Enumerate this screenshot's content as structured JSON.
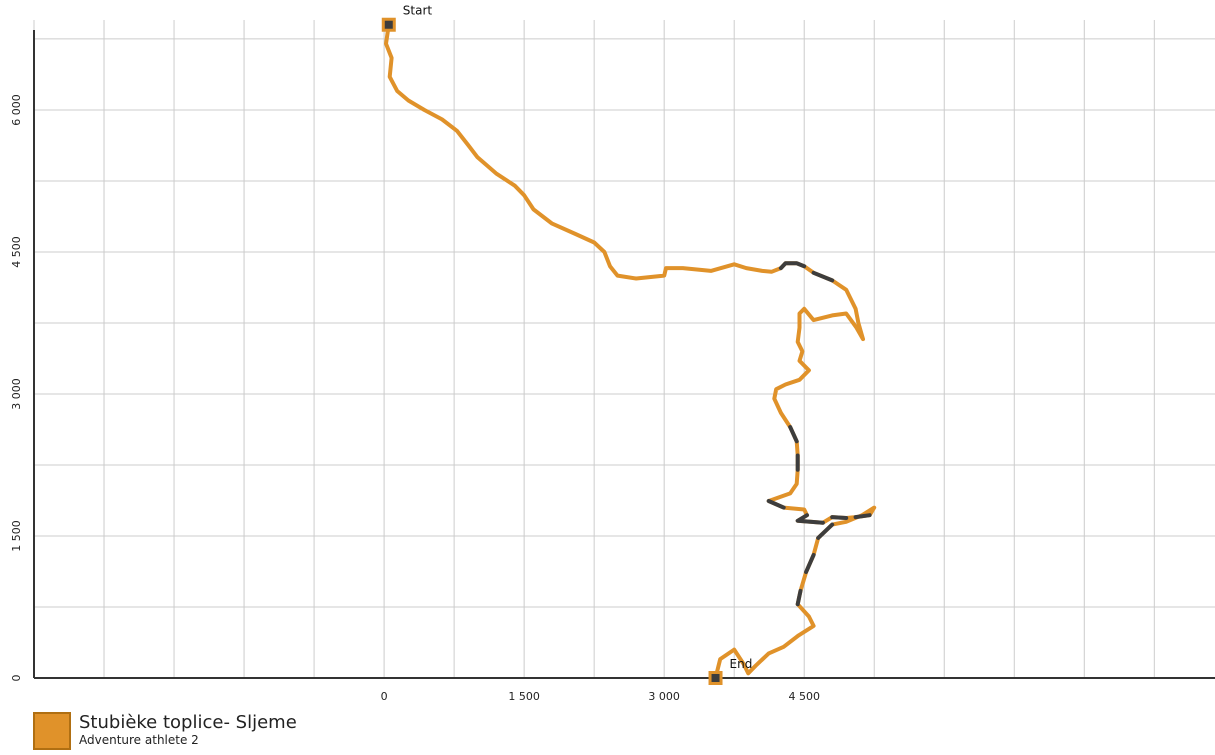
{
  "chart_data": {
    "type": "line",
    "grid": true,
    "xlim": [
      -3750,
      8900
    ],
    "ylim": [
      0,
      6950
    ],
    "x_ticks": [
      0,
      1500,
      3000,
      4500
    ],
    "x_tick_labels": [
      "0",
      "1 500",
      "3 000",
      "4 500"
    ],
    "y_ticks": [
      0,
      1500,
      3000,
      4500,
      6000
    ],
    "y_tick_labels": [
      "0",
      "1 500",
      "3 000",
      "4 500",
      "6 000"
    ],
    "colors": {
      "track": "#e0922a",
      "dark_segment": "#3d3d3d",
      "grid": "#cccccc",
      "axis": "#333333"
    },
    "markers": [
      {
        "label": "Start",
        "x": 50,
        "y": 6900
      },
      {
        "label": "End",
        "x": 3550,
        "y": 0
      }
    ],
    "series": [
      {
        "name": "Stubièke toplice- Sljeme",
        "points": [
          [
            50,
            6900
          ],
          [
            20,
            6700
          ],
          [
            80,
            6550
          ],
          [
            60,
            6350
          ],
          [
            140,
            6200
          ],
          [
            260,
            6100
          ],
          [
            430,
            6000
          ],
          [
            620,
            5900
          ],
          [
            780,
            5780
          ],
          [
            900,
            5630
          ],
          [
            1000,
            5500
          ],
          [
            1200,
            5330
          ],
          [
            1400,
            5200
          ],
          [
            1500,
            5100
          ],
          [
            1600,
            4950
          ],
          [
            1800,
            4800
          ],
          [
            2050,
            4690
          ],
          [
            2250,
            4600
          ],
          [
            2360,
            4500
          ],
          [
            2420,
            4350
          ],
          [
            2500,
            4250
          ],
          [
            2700,
            4220
          ],
          [
            3000,
            4250
          ],
          [
            3020,
            4330
          ],
          [
            3200,
            4330
          ],
          [
            3500,
            4300
          ],
          [
            3750,
            4370
          ],
          [
            3880,
            4330
          ],
          [
            4050,
            4300
          ],
          [
            4150,
            4290
          ],
          [
            4250,
            4330
          ],
          [
            4300,
            4380
          ],
          [
            4420,
            4380
          ],
          [
            4500,
            4350
          ],
          [
            4600,
            4280
          ],
          [
            4800,
            4200
          ],
          [
            4950,
            4100
          ],
          [
            5050,
            3900
          ],
          [
            5080,
            3750
          ],
          [
            5130,
            3580
          ],
          [
            5060,
            3700
          ],
          [
            4950,
            3850
          ],
          [
            4800,
            3830
          ],
          [
            4600,
            3780
          ],
          [
            4500,
            3900
          ],
          [
            4450,
            3850
          ],
          [
            4450,
            3700
          ],
          [
            4430,
            3550
          ],
          [
            4480,
            3450
          ],
          [
            4450,
            3350
          ],
          [
            4550,
            3250
          ],
          [
            4450,
            3150
          ],
          [
            4300,
            3100
          ],
          [
            4200,
            3050
          ],
          [
            4180,
            2950
          ],
          [
            4250,
            2800
          ],
          [
            4350,
            2650
          ],
          [
            4420,
            2500
          ],
          [
            4430,
            2350
          ],
          [
            4430,
            2200
          ],
          [
            4420,
            2050
          ],
          [
            4350,
            1950
          ],
          [
            4120,
            1870
          ],
          [
            4280,
            1800
          ],
          [
            4500,
            1780
          ],
          [
            4530,
            1720
          ],
          [
            4430,
            1660
          ],
          [
            4700,
            1640
          ],
          [
            4800,
            1700
          ],
          [
            4950,
            1690
          ],
          [
            5050,
            1700
          ],
          [
            5200,
            1720
          ],
          [
            5250,
            1800
          ],
          [
            5120,
            1720
          ],
          [
            4950,
            1650
          ],
          [
            4800,
            1620
          ],
          [
            4650,
            1480
          ],
          [
            4600,
            1300
          ],
          [
            4520,
            1120
          ],
          [
            4460,
            920
          ],
          [
            4430,
            780
          ],
          [
            4550,
            650
          ],
          [
            4600,
            550
          ],
          [
            4440,
            450
          ],
          [
            4280,
            330
          ],
          [
            4120,
            260
          ],
          [
            3980,
            130
          ],
          [
            3900,
            50
          ],
          [
            3850,
            150
          ],
          [
            3750,
            300
          ],
          [
            3600,
            200
          ],
          [
            3550,
            0
          ]
        ]
      }
    ],
    "dark_segments": [
      [
        [
          4250,
          4330
        ],
        [
          4300,
          4380
        ],
        [
          4420,
          4380
        ],
        [
          4500,
          4350
        ]
      ],
      [
        [
          4600,
          4280
        ],
        [
          4800,
          4200
        ]
      ],
      [
        [
          4350,
          2650
        ],
        [
          4420,
          2500
        ]
      ],
      [
        [
          4430,
          2350
        ],
        [
          4430,
          2200
        ]
      ],
      [
        [
          4120,
          1870
        ],
        [
          4280,
          1800
        ]
      ],
      [
        [
          4530,
          1720
        ],
        [
          4430,
          1660
        ],
        [
          4700,
          1640
        ]
      ],
      [
        [
          4800,
          1700
        ],
        [
          4950,
          1690
        ]
      ],
      [
        [
          5050,
          1700
        ],
        [
          5200,
          1720
        ]
      ],
      [
        [
          4800,
          1620
        ],
        [
          4650,
          1480
        ]
      ],
      [
        [
          4600,
          1300
        ],
        [
          4520,
          1120
        ]
      ],
      [
        [
          4460,
          920
        ],
        [
          4430,
          780
        ]
      ]
    ]
  },
  "legend": {
    "color": "#e0922a",
    "title": "Stubièke toplice- Sljeme",
    "subtitle": "Adventure athlete 2"
  }
}
